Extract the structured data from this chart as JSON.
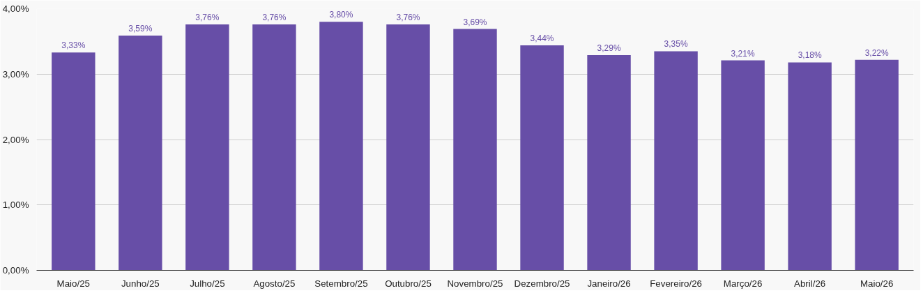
{
  "chart_data": {
    "type": "bar",
    "categories": [
      "Maio/25",
      "Junho/25",
      "Julho/25",
      "Agosto/25",
      "Setembro/25",
      "Outubro/25",
      "Novembro/25",
      "Dezembro/25",
      "Janeiro/26",
      "Fevereiro/26",
      "Março/26",
      "Abril/26",
      "Maio/26"
    ],
    "values": [
      3.33,
      3.59,
      3.76,
      3.76,
      3.8,
      3.76,
      3.69,
      3.44,
      3.29,
      3.35,
      3.21,
      3.18,
      3.22
    ],
    "value_labels": [
      "3,33%",
      "3,59%",
      "3,76%",
      "3,76%",
      "3,80%",
      "3,76%",
      "3,69%",
      "3,44%",
      "3,29%",
      "3,35%",
      "3,21%",
      "3,18%",
      "3,22%"
    ],
    "color": "#674ea7",
    "ylim": [
      0,
      4
    ],
    "yticks": [
      {
        "value": 0,
        "label": "0,00%"
      },
      {
        "value": 1,
        "label": "1,00%"
      },
      {
        "value": 2,
        "label": "2,00%"
      },
      {
        "value": 3,
        "label": "3,00%"
      },
      {
        "value": 4,
        "label": "4,00%"
      }
    ],
    "grid": "y"
  }
}
